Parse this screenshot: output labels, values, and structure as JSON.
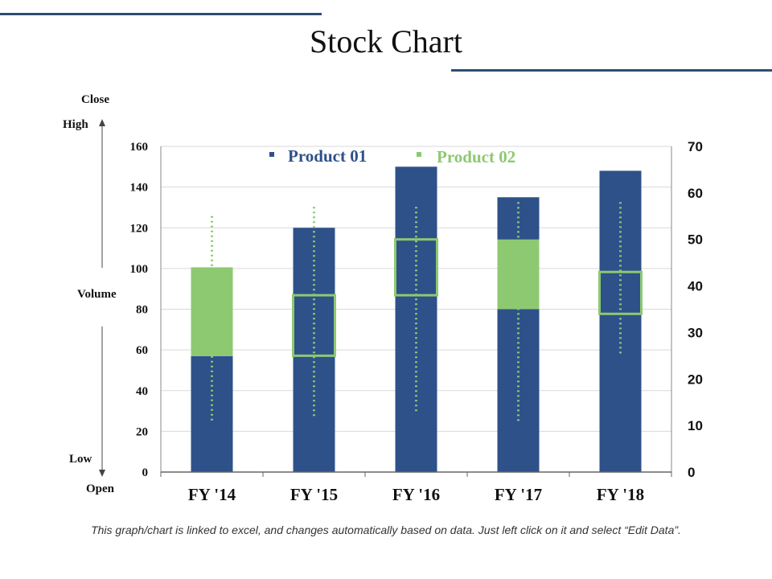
{
  "page": {
    "title": "Stock Chart",
    "caption": "This graph/chart is linked to excel, and changes automatically based on data. Just left click on it and select “Edit Data”."
  },
  "side_labels": {
    "close": "Close",
    "high": "High",
    "volume": "Volume",
    "low": "Low",
    "open": "Open"
  },
  "colors": {
    "product01": "#2e5189",
    "product02": "#8dc971",
    "deco": "#2e4e72"
  },
  "chart_data": {
    "type": "bar",
    "title": "Stock Chart",
    "categories": [
      "FY '14",
      "FY '15",
      "FY '16",
      "FY '17",
      "FY '18"
    ],
    "y_left": {
      "ylim": [
        0,
        160
      ],
      "ticks": [
        "0",
        "20",
        "40",
        "60",
        "80",
        "100",
        "120",
        "140",
        "160"
      ]
    },
    "y_right": {
      "ylim": [
        0,
        70
      ],
      "ticks": [
        "0",
        "10",
        "20",
        "30",
        "40",
        "50",
        "60",
        "70"
      ]
    },
    "grid": true,
    "legend_position": "top-center",
    "series": [
      {
        "name": "Product 01",
        "type": "volume-bar",
        "axis": "left",
        "values": [
          57,
          120,
          150,
          135,
          148
        ]
      },
      {
        "name": "Product 02",
        "type": "candlestick",
        "axis": "right",
        "open": [
          25,
          38,
          50,
          35,
          43
        ],
        "close": [
          44,
          25,
          38,
          50,
          34
        ],
        "high": [
          55,
          57,
          57,
          58,
          58
        ],
        "low": [
          11,
          12,
          13,
          11,
          25
        ]
      }
    ]
  }
}
